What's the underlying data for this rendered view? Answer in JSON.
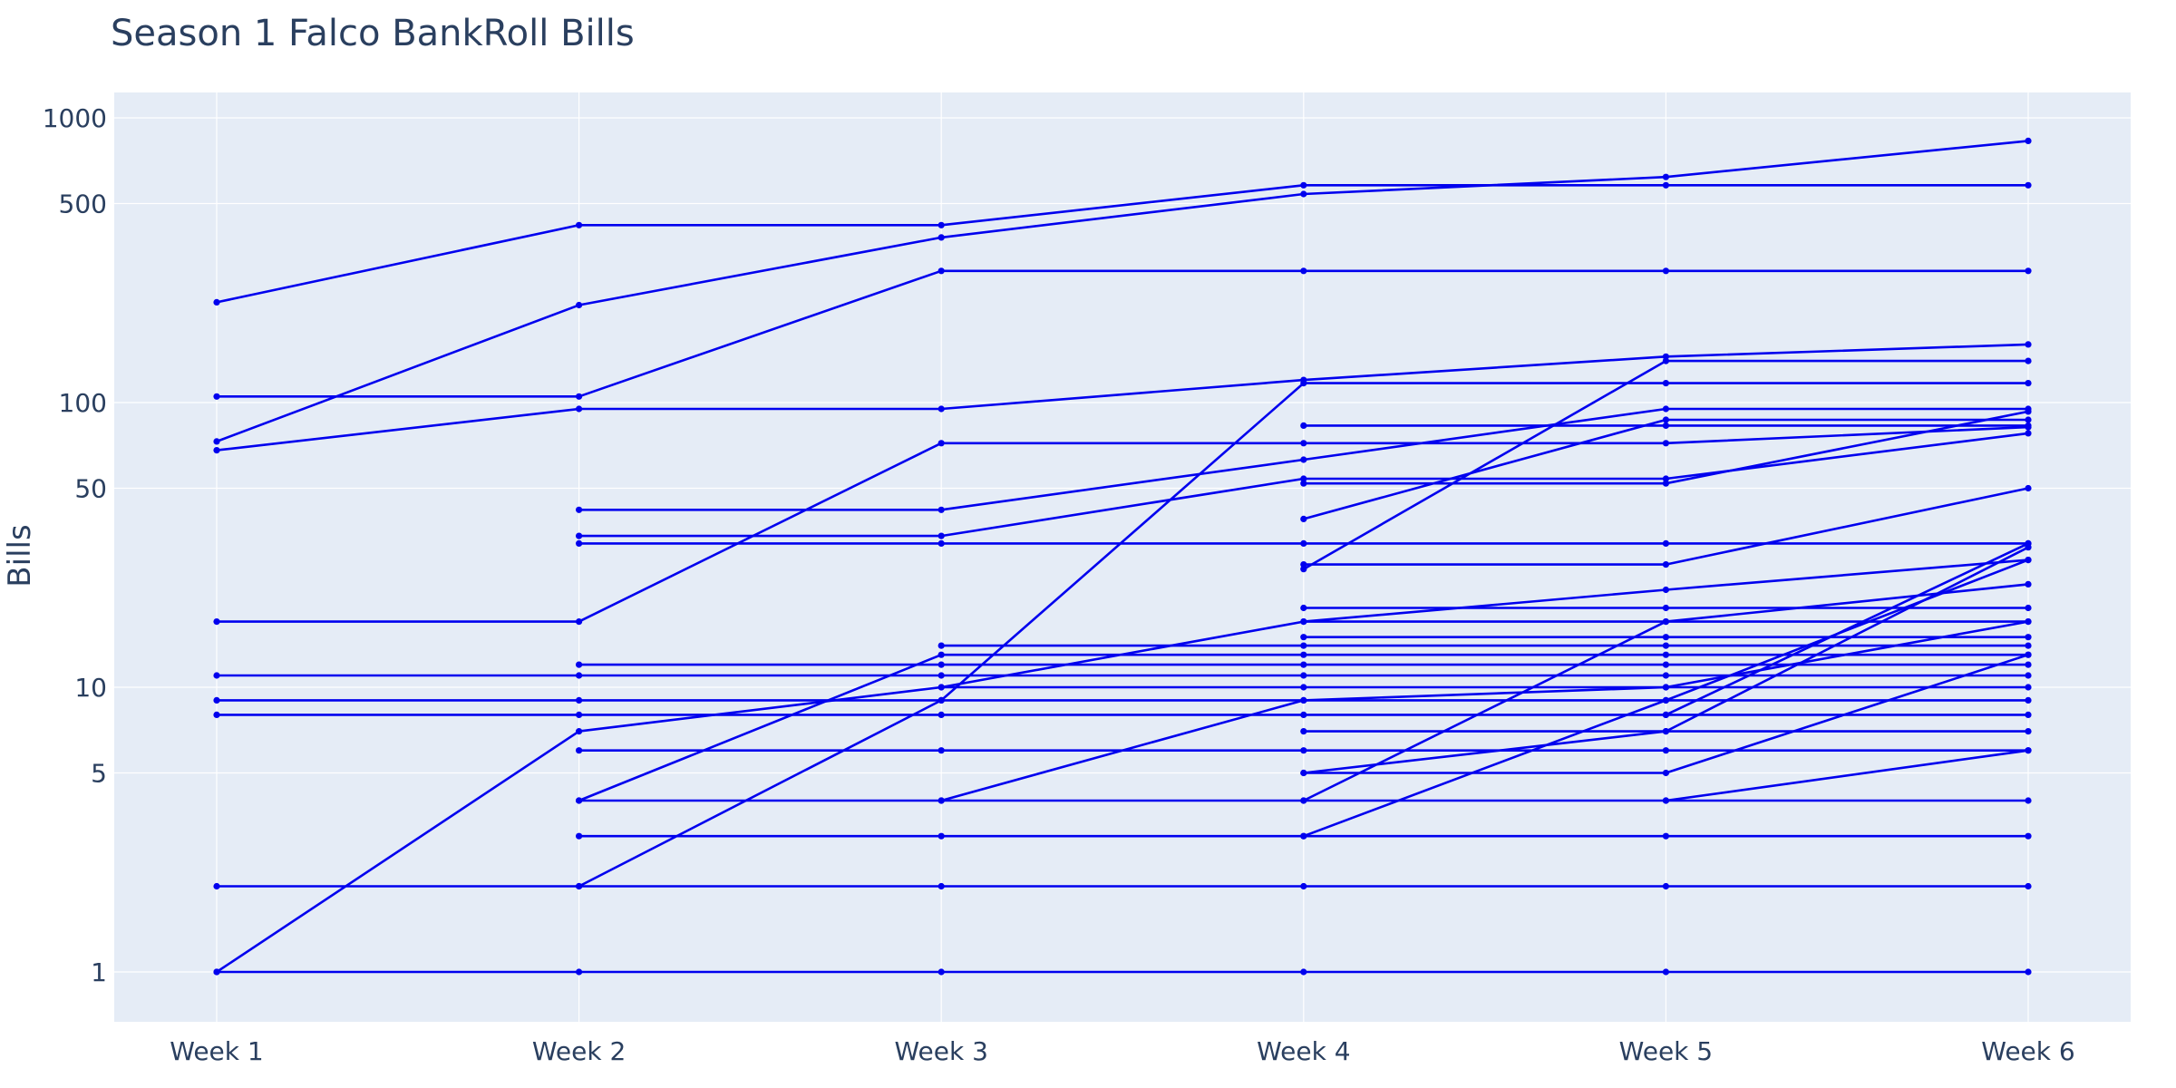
{
  "chart_data": {
    "type": "line",
    "title": "Season 1 Falco BankRoll Bills",
    "xlabel": "",
    "ylabel": "Bills",
    "yscale": "log",
    "ylim": [
      0.7,
      1200
    ],
    "categories": [
      "Week 1",
      "Week 2",
      "Week 3",
      "Week 4",
      "Week 5",
      "Week 6"
    ],
    "yticks": [
      {
        "value": 1,
        "label": "1"
      },
      {
        "value": 5,
        "label": "5"
      },
      {
        "value": 10,
        "label": "10"
      },
      {
        "value": 50,
        "label": "50"
      },
      {
        "value": 100,
        "label": "100"
      },
      {
        "value": 500,
        "label": "500"
      },
      {
        "value": 1000,
        "label": "1000"
      }
    ],
    "grid": true,
    "legend": "none",
    "colors": {
      "line": "#0000ee",
      "plot_background": "#e5ecf6",
      "grid": "#ffffff",
      "text": "#2a3f5f"
    },
    "series": [
      {
        "values": [
          225,
          420,
          420,
          580,
          580,
          580
        ]
      },
      {
        "values": [
          73,
          220,
          380,
          540,
          620,
          830
        ]
      },
      {
        "values": [
          68,
          95,
          95,
          120,
          145,
          160
        ]
      },
      {
        "values": [
          105,
          105,
          290,
          290,
          290,
          290
        ]
      },
      {
        "values": [
          17,
          17,
          72,
          72,
          72,
          82
        ]
      },
      {
        "values": [
          11,
          11,
          11,
          11,
          11,
          11
        ]
      },
      {
        "values": [
          9,
          9,
          9,
          9,
          9,
          9
        ]
      },
      {
        "values": [
          8,
          8,
          8,
          8,
          8,
          8
        ]
      },
      {
        "values": [
          2,
          2,
          2,
          2,
          2,
          2
        ]
      },
      {
        "values": [
          1,
          1,
          1,
          1,
          1,
          1
        ]
      },
      {
        "values": [
          1,
          7,
          10,
          17,
          22,
          28
        ]
      },
      {
        "values": [
          null,
          42,
          42,
          63,
          95,
          95
        ]
      },
      {
        "values": [
          null,
          34,
          34,
          54,
          54,
          78
        ]
      },
      {
        "values": [
          null,
          32,
          32,
          32,
          32,
          32
        ]
      },
      {
        "values": [
          null,
          12,
          12,
          12,
          12,
          12
        ]
      },
      {
        "values": [
          null,
          6,
          6,
          6,
          6,
          6
        ]
      },
      {
        "values": [
          null,
          4,
          13,
          13,
          13,
          13
        ]
      },
      {
        "values": [
          null,
          4,
          4,
          4,
          4,
          4
        ]
      },
      {
        "values": [
          null,
          3,
          3,
          3,
          3,
          3
        ]
      },
      {
        "values": [
          null,
          2,
          9,
          117,
          117,
          117
        ]
      },
      {
        "values": [
          null,
          null,
          14,
          14,
          14,
          14
        ]
      },
      {
        "values": [
          null,
          null,
          4,
          9,
          10,
          17
        ]
      },
      {
        "values": [
          null,
          null,
          10,
          10,
          10,
          10
        ]
      },
      {
        "values": [
          null,
          null,
          null,
          83,
          83,
          83
        ]
      },
      {
        "values": [
          null,
          null,
          null,
          52,
          52,
          93
        ]
      },
      {
        "values": [
          null,
          null,
          null,
          39,
          87,
          87
        ]
      },
      {
        "values": [
          null,
          null,
          null,
          27,
          27,
          50
        ]
      },
      {
        "values": [
          null,
          null,
          null,
          26,
          140,
          140
        ]
      },
      {
        "values": [
          null,
          null,
          null,
          19,
          19,
          19
        ]
      },
      {
        "values": [
          null,
          null,
          null,
          17,
          17,
          17
        ]
      },
      {
        "values": [
          null,
          null,
          null,
          15,
          15,
          15
        ]
      },
      {
        "values": [
          null,
          null,
          null,
          7,
          7,
          7
        ]
      },
      {
        "values": [
          null,
          null,
          null,
          5,
          5,
          13
        ]
      },
      {
        "values": [
          null,
          null,
          null,
          5,
          7,
          31
        ]
      },
      {
        "values": [
          null,
          null,
          null,
          4,
          17,
          23
        ]
      },
      {
        "values": [
          null,
          null,
          null,
          3,
          9,
          28
        ]
      },
      {
        "values": [
          null,
          null,
          null,
          null,
          8,
          32
        ]
      },
      {
        "values": [
          null,
          null,
          null,
          null,
          4,
          6
        ]
      }
    ]
  }
}
